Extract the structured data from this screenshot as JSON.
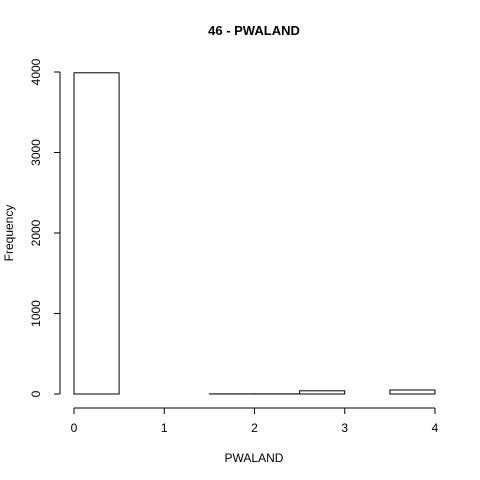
{
  "chart_data": {
    "type": "bar",
    "title": "46 - PWALAND",
    "xlabel": "PWALAND",
    "ylabel": "Frequency",
    "bins": [
      {
        "x0": 0.0,
        "x1": 0.5,
        "count": 3990
      },
      {
        "x0": 0.5,
        "x1": 1.0,
        "count": 0
      },
      {
        "x0": 1.0,
        "x1": 1.5,
        "count": 0
      },
      {
        "x0": 1.5,
        "x1": 2.0,
        "count": 1
      },
      {
        "x0": 2.0,
        "x1": 2.5,
        "count": 1
      },
      {
        "x0": 2.5,
        "x1": 3.0,
        "count": 40
      },
      {
        "x0": 3.0,
        "x1": 3.5,
        "count": 0
      },
      {
        "x0": 3.5,
        "x1": 4.0,
        "count": 50
      }
    ],
    "xlim": [
      0,
      4
    ],
    "ylim": [
      0,
      4000
    ],
    "xticks": [
      "0",
      "1",
      "2",
      "3",
      "4"
    ],
    "yticks": [
      "0",
      "1000",
      "2000",
      "3000",
      "4000"
    ],
    "grid": false,
    "legend": "none"
  }
}
